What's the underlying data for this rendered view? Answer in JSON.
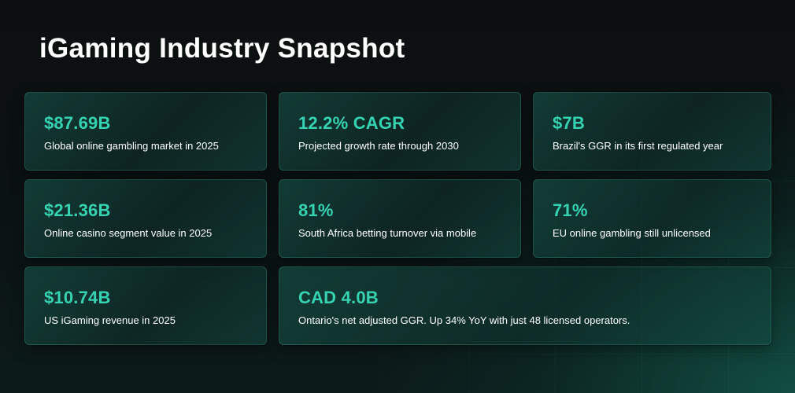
{
  "title": "iGaming Industry Snapshot",
  "colors": {
    "accent": "#35d3b2",
    "text": "#ffffff",
    "background": "#0c0f10",
    "card": "#14463f"
  },
  "stats": [
    {
      "value": "$87.69B",
      "label": "Global online gambling market in 2025"
    },
    {
      "value": "12.2% CAGR",
      "label": "Projected growth rate through 2030"
    },
    {
      "value": "$7B",
      "label": "Brazil's GGR in its first regulated year"
    },
    {
      "value": "$21.36B",
      "label": "Online casino segment value in 2025"
    },
    {
      "value": "81%",
      "label": "South Africa betting turnover via mobile"
    },
    {
      "value": "71%",
      "label": "EU online gambling still unlicensed"
    },
    {
      "value": "$10.74B",
      "label": "US iGaming revenue in 2025"
    },
    {
      "value": "CAD 4.0B",
      "label": "Ontario's net adjusted GGR. Up 34% YoY with just 48 licensed operators."
    }
  ]
}
